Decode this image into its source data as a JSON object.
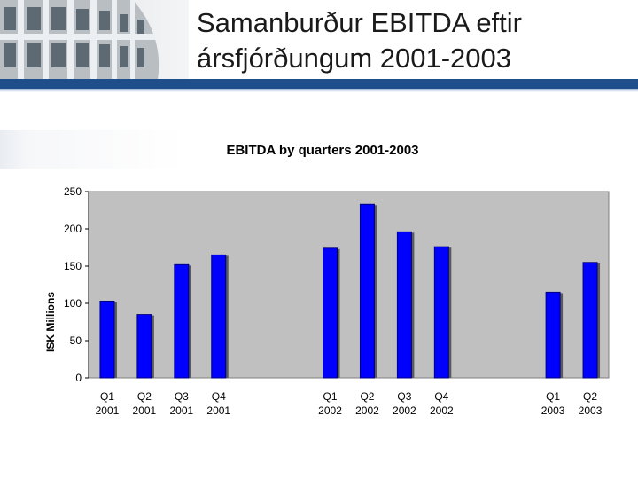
{
  "slide": {
    "title_line1": "Samanburður EBITDA eftir",
    "title_line2": "ársfjórðungum 2001-2003"
  },
  "colors": {
    "band": "#1f4e8c",
    "plot_bg": "#c0c0c0",
    "bar": "#0000ff",
    "bar_dark": "#000080"
  },
  "chart_data": {
    "type": "bar",
    "title": "EBITDA by quarters 2001-2003",
    "xlabel": "",
    "ylabel": "ISK Millions",
    "ylim": [
      0,
      250
    ],
    "yticks": [
      0,
      50,
      100,
      150,
      200,
      250
    ],
    "grid": false,
    "legend": "none",
    "categories": [
      {
        "q": "Q1",
        "y": "2001",
        "value": 103
      },
      {
        "q": "Q2",
        "y": "2001",
        "value": 85
      },
      {
        "q": "Q3",
        "y": "2001",
        "value": 152
      },
      {
        "q": "Q4",
        "y": "2001",
        "value": 165
      },
      {
        "q": "",
        "y": "",
        "value": null
      },
      {
        "q": "",
        "y": "",
        "value": null
      },
      {
        "q": "Q1",
        "y": "2002",
        "value": 174
      },
      {
        "q": "Q2",
        "y": "2002",
        "value": 233
      },
      {
        "q": "Q3",
        "y": "2002",
        "value": 196
      },
      {
        "q": "Q4",
        "y": "2002",
        "value": 176
      },
      {
        "q": "",
        "y": "",
        "value": null
      },
      {
        "q": "",
        "y": "",
        "value": null
      },
      {
        "q": "Q1",
        "y": "2003",
        "value": 115
      },
      {
        "q": "Q2",
        "y": "2003",
        "value": 155
      }
    ]
  }
}
